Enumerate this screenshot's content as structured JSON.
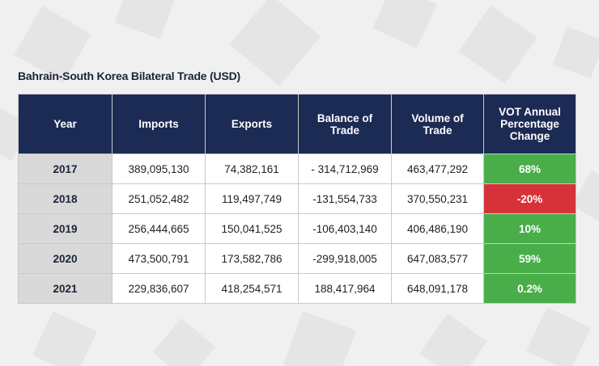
{
  "title": "Bahrain-South Korea Bilateral Trade (USD)",
  "colors": {
    "header_bg": "#1c2b54",
    "positive": "#49ae4a",
    "negative": "#d7323a",
    "year_bg": "#d9d9d9"
  },
  "chart_data": {
    "type": "table",
    "title": "Bahrain-South Korea Bilateral Trade (USD)",
    "columns": [
      "Year",
      "Imports",
      "Exports",
      "Balance of Trade",
      "Volume of Trade",
      "VOT Annual Percentage Change"
    ],
    "rows": [
      {
        "year": "2017",
        "imports": "389,095,130",
        "exports": "74,382,161",
        "balance": "- 314,712,969",
        "volume": "463,477,292",
        "change": "68%",
        "trend": "positive"
      },
      {
        "year": "2018",
        "imports": "251,052,482",
        "exports": "119,497,749",
        "balance": "-131,554,733",
        "volume": "370,550,231",
        "change": "-20%",
        "trend": "negative"
      },
      {
        "year": "2019",
        "imports": "256,444,665",
        "exports": "150,041,525",
        "balance": "-106,403,140",
        "volume": "406,486,190",
        "change": "10%",
        "trend": "positive"
      },
      {
        "year": "2020",
        "imports": "473,500,791",
        "exports": "173,582,786",
        "balance": "-299,918,005",
        "volume": "647,083,577",
        "change": "59%",
        "trend": "positive"
      },
      {
        "year": "2021",
        "imports": "229,836,607",
        "exports": "418,254,571",
        "balance": "188,417,964",
        "volume": "648,091,178",
        "change": "0.2%",
        "trend": "positive"
      }
    ]
  }
}
